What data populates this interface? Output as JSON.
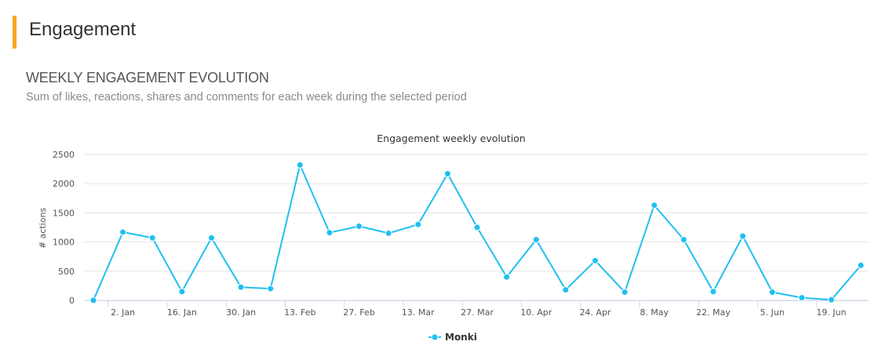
{
  "section": {
    "title": "Engagement",
    "accent_color": "#f5a623"
  },
  "panel": {
    "heading": "WEEKLY ENGAGEMENT EVOLUTION",
    "subheading": "Sum of likes, reactions, shares and comments for each week during the selected period"
  },
  "chart_data": {
    "type": "line",
    "title": "Engagement weekly evolution",
    "xlabel": "",
    "ylabel": "# actions",
    "ylim": [
      0,
      2500
    ],
    "y_ticks": [
      0,
      500,
      1000,
      1500,
      2000,
      2500
    ],
    "x_tick_labels": [
      "2. Jan",
      "16. Jan",
      "30. Jan",
      "13. Feb",
      "27. Feb",
      "13. Mar",
      "27. Mar",
      "10. Apr",
      "24. Apr",
      "8. May",
      "22. May",
      "5. Jun",
      "19. Jun"
    ],
    "x_tick_every": 2,
    "x_tick_start_index": 1,
    "grid": true,
    "legend_placement": "bottom-center",
    "series": [
      {
        "name": "Monki",
        "color": "#1ec0ef",
        "values": [
          0,
          1170,
          1070,
          150,
          1070,
          225,
          200,
          2320,
          1160,
          1270,
          1150,
          1300,
          2170,
          1250,
          400,
          1040,
          180,
          680,
          140,
          1630,
          1040,
          150,
          1100,
          140,
          45,
          10,
          600
        ]
      }
    ]
  }
}
